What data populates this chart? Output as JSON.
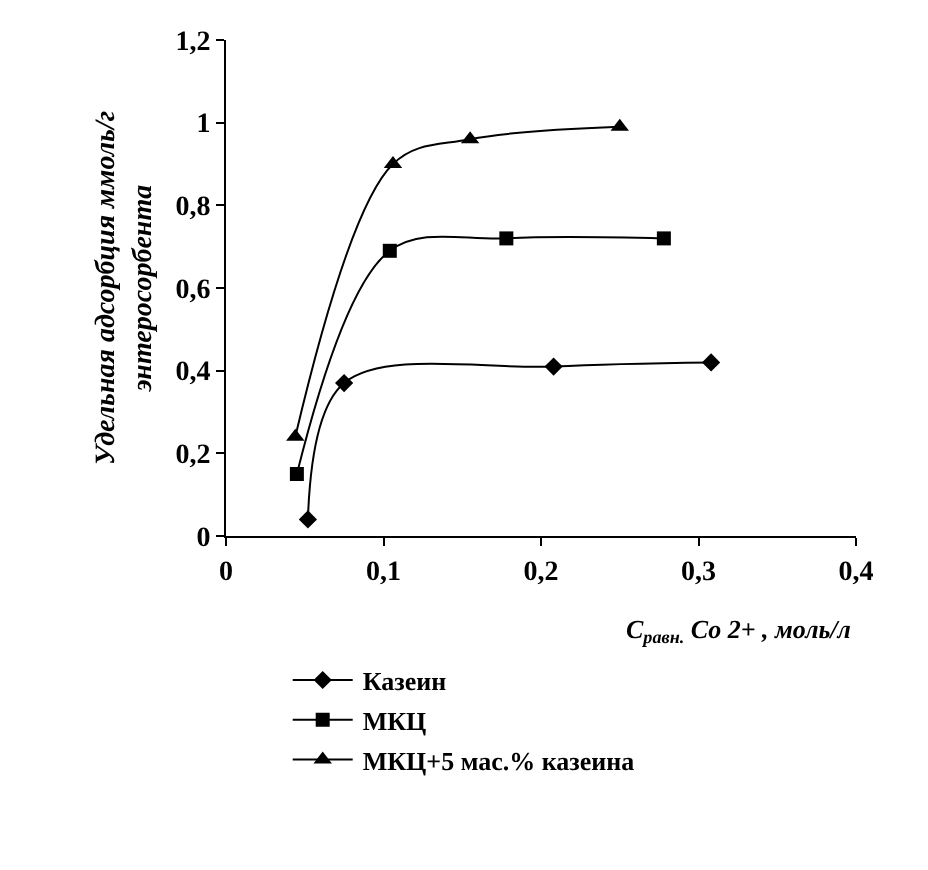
{
  "chart_data": {
    "type": "line",
    "xlabel": "C$_{равн.}$ Co 2+ , моль/л",
    "ylabel": "Удельная адсорбция ммоль/г\nэнтеросорбента",
    "xlim": [
      0,
      0.4
    ],
    "xticks": [
      0,
      {
        "value": 0.1,
        "label": "0,1"
      },
      {
        "value": 0.2,
        "label": "0,2"
      },
      {
        "value": 0.3,
        "label": "0,3"
      },
      {
        "value": 0.4,
        "label": "0,4"
      }
    ],
    "ylim": [
      0,
      1.2
    ],
    "yticks": [
      0,
      {
        "value": 0.2,
        "label": "0,2"
      },
      {
        "value": 0.4,
        "label": "0,4"
      },
      {
        "value": 0.6,
        "label": "0,6"
      },
      {
        "value": 0.8,
        "label": "0,8"
      },
      1,
      {
        "value": 1.2,
        "label": "1,2"
      }
    ],
    "grid": false,
    "legend": "bottom",
    "line_style": "solid",
    "series": [
      {
        "name": "Казеин",
        "color": "#000000",
        "marker": "diamond",
        "x": [
          0.052,
          0.075,
          0.208,
          0.308
        ],
        "values": [
          0.04,
          0.37,
          0.41,
          0.42
        ]
      },
      {
        "name": "МКЦ",
        "color": "#000000",
        "marker": "square",
        "x": [
          0.045,
          0.104,
          0.178,
          0.278
        ],
        "values": [
          0.15,
          0.69,
          0.72,
          0.72
        ]
      },
      {
        "name": "МКЦ+5 мас.% казеина",
        "color": "#000000",
        "marker": "triangle",
        "x": [
          0.044,
          0.106,
          0.155,
          0.25
        ],
        "values": [
          0.24,
          0.9,
          0.96,
          0.99
        ]
      }
    ]
  }
}
